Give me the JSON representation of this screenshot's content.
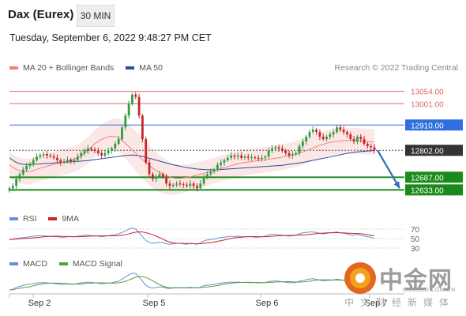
{
  "header": {
    "title": "Dax (Eurex)",
    "timeframe": "30 MIN"
  },
  "datetime": "Tuesday, September 6, 2022 9:48:27 PM CET",
  "legend": {
    "main": [
      {
        "name": "MA 20 + Bollinger Bands",
        "color": "#f08080"
      },
      {
        "name": "MA 50",
        "color": "#2b4e9a"
      }
    ],
    "rsi": [
      {
        "name": "RSI",
        "color": "#6a8fd8"
      },
      {
        "name": "9MA",
        "color": "#cc2222"
      }
    ],
    "macd": [
      {
        "name": "MACD",
        "color": "#6a8fd8"
      },
      {
        "name": "MACD Signal",
        "color": "#5aa02c"
      }
    ]
  },
  "copyright": "Research © 2022 Trading Central",
  "watermark": {
    "cn": "中金网",
    "url": "CNGOLD.COM.CN",
    "tagline": "中文财经新媒体"
  },
  "chart_data": {
    "type": "line",
    "title": "Dax (Eurex)",
    "x_ticks": [
      "Sep 2",
      "Sep 5",
      "Sep 6",
      "Sep 7"
    ],
    "levels": [
      {
        "value": 13054.0,
        "label": "13054.00",
        "type": "resistance",
        "color": "#e06666"
      },
      {
        "value": 13001.0,
        "label": "13001.00",
        "type": "resistance",
        "color": "#e06666"
      },
      {
        "value": 12910.0,
        "label": "12910.00",
        "type": "pivot",
        "color": "#2f6fe0"
      },
      {
        "value": 12802.0,
        "label": "12802.00",
        "type": "last",
        "color": "#333333"
      },
      {
        "value": 12687.0,
        "label": "12687.00",
        "type": "support",
        "color": "#1a8a1a"
      },
      {
        "value": 12633.0,
        "label": "12633.00",
        "type": "support",
        "color": "#1a8a1a"
      }
    ],
    "close": [
      12640,
      12650,
      12680,
      12700,
      12720,
      12735,
      12745,
      12760,
      12775,
      12782,
      12786,
      12780,
      12776,
      12770,
      12760,
      12750,
      12755,
      12762,
      12755,
      12760,
      12775,
      12790,
      12800,
      12810,
      12805,
      12800,
      12790,
      12780,
      12790,
      12800,
      12810,
      12830,
      12850,
      12900,
      12950,
      13000,
      13040,
      13030,
      12950,
      12850,
      12750,
      12700,
      12680,
      12690,
      12700,
      12690,
      12660,
      12650,
      12655,
      12660,
      12658,
      12655,
      12650,
      12660,
      12650,
      12640,
      12660,
      12690,
      12700,
      12710,
      12720,
      12740,
      12750,
      12760,
      12770,
      12780,
      12775,
      12780,
      12770,
      12775,
      12770,
      12772,
      12770,
      12765,
      12770,
      12775,
      12800,
      12810,
      12815,
      12810,
      12800,
      12790,
      12780,
      12785,
      12790,
      12820,
      12840,
      12860,
      12880,
      12890,
      12880,
      12860,
      12850,
      12860,
      12870,
      12880,
      12900,
      12890,
      12880,
      12870,
      12850,
      12840,
      12860,
      12850,
      12830,
      12820,
      12815,
      12802
    ],
    "ma20": [
      12740,
      12730,
      12720,
      12715,
      12712,
      12710,
      12712,
      12716,
      12720,
      12726,
      12730,
      12734,
      12738,
      12742,
      12745,
      12748,
      12752,
      12756,
      12760,
      12765,
      12770,
      12780,
      12790,
      12800,
      12815,
      12830,
      12840,
      12848,
      12855,
      12860,
      12862,
      12860,
      12855,
      12845,
      12832,
      12818,
      12804,
      12790,
      12776,
      12762,
      12750,
      12738,
      12726,
      12716,
      12708,
      12700,
      12694,
      12688,
      12684,
      12682,
      12682,
      12684,
      12686,
      12688,
      12692,
      12696,
      12700,
      12704,
      12708,
      12712,
      12716,
      12720,
      12724,
      12728,
      12732,
      12736,
      12740,
      12744,
      12748,
      12750,
      12752,
      12754,
      12756,
      12758,
      12760,
      12762,
      12764,
      12766,
      12768,
      12770,
      12773,
      12776,
      12779,
      12782,
      12786,
      12790,
      12795,
      12800,
      12806,
      12812,
      12818,
      12823,
      12828,
      12832,
      12836,
      12838,
      12840,
      12842,
      12843,
      12844,
      12844,
      12843,
      12842,
      12841,
      12840,
      12839,
      12838,
      12837
    ],
    "ma50": [
      12770,
      12760,
      12750,
      12745,
      12742,
      12741,
      12741,
      12742,
      12743,
      12744,
      12745,
      12746,
      12747,
      12748,
      12749,
      12750,
      12751,
      12752,
      12753,
      12754,
      12755,
      12756,
      12757,
      12758,
      12760,
      12762,
      12764,
      12766,
      12768,
      12770,
      12772,
      12774,
      12776,
      12778,
      12780,
      12781,
      12782,
      12781,
      12779,
      12776,
      12772,
      12768,
      12764,
      12760,
      12756,
      12752,
      12748,
      12744,
      12740,
      12737,
      12734,
      12731,
      12728,
      12726,
      12724,
      12722,
      12721,
      12720,
      12719,
      12719,
      12719,
      12719,
      12720,
      12721,
      12722,
      12723,
      12724,
      12725,
      12726,
      12727,
      12728,
      12729,
      12730,
      12731,
      12732,
      12733,
      12734,
      12735,
      12736,
      12737,
      12738,
      12740,
      12742,
      12744,
      12746,
      12748,
      12750,
      12753,
      12756,
      12759,
      12762,
      12765,
      12768,
      12771,
      12774,
      12777,
      12780,
      12783,
      12786,
      12789,
      12791,
      12793,
      12795,
      12797,
      12798,
      12799,
      12800,
      12801
    ],
    "rsi": [
      48,
      49,
      50,
      51,
      52,
      53,
      54,
      55,
      56,
      56,
      56,
      55,
      55,
      54,
      54,
      53,
      53,
      54,
      54,
      54,
      55,
      56,
      57,
      57,
      56,
      56,
      55,
      54,
      55,
      56,
      57,
      58,
      60,
      63,
      66,
      70,
      72,
      70,
      62,
      54,
      46,
      42,
      40,
      41,
      42,
      41,
      39,
      38,
      39,
      40,
      40,
      39,
      38,
      40,
      39,
      38,
      41,
      45,
      47,
      48,
      49,
      51,
      52,
      53,
      54,
      55,
      54,
      55,
      54,
      54,
      54,
      54,
      53,
      53,
      54,
      55,
      58,
      59,
      59,
      58,
      57,
      56,
      55,
      56,
      57,
      60,
      62,
      63,
      64,
      64,
      63,
      61,
      60,
      61,
      62,
      63,
      64,
      62,
      61,
      60,
      58,
      57,
      59,
      57,
      55,
      54,
      53,
      50
    ],
    "rsi_ticks": [
      70,
      50,
      30
    ],
    "macd_type": "oscillator",
    "ylim": [
      12560,
      13120
    ]
  }
}
